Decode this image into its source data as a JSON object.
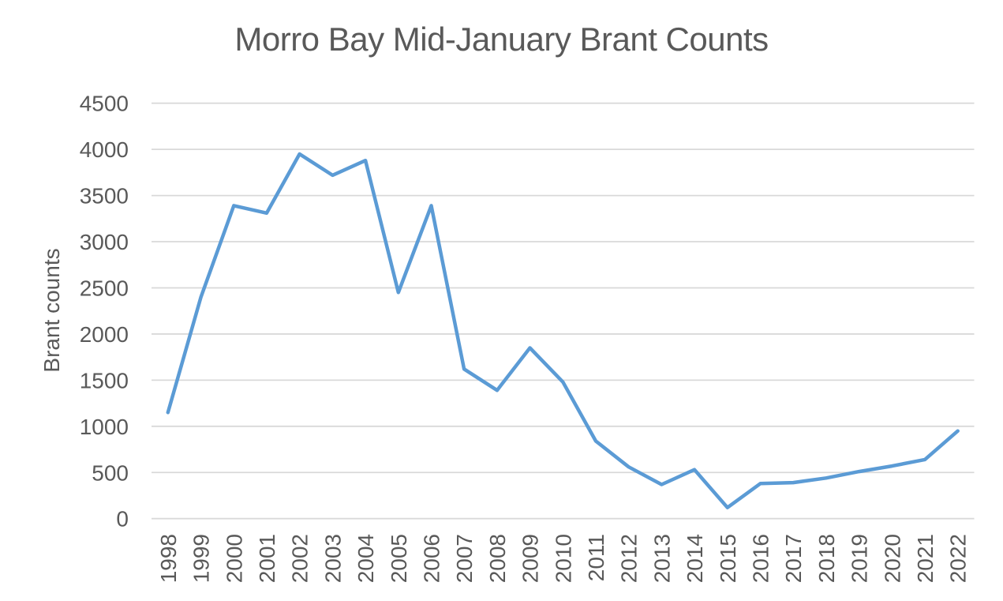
{
  "chart_data": {
    "type": "line",
    "title": "Morro Bay Mid-January Brant Counts",
    "xlabel": "",
    "ylabel": "Brant counts",
    "categories": [
      "1998",
      "1999",
      "2000",
      "2001",
      "2002",
      "2003",
      "2004",
      "2005",
      "2006",
      "2007",
      "2008",
      "2009",
      "2010",
      "2011",
      "2012",
      "2013",
      "2014",
      "2015",
      "2016",
      "2017",
      "2018",
      "2019",
      "2020",
      "2021",
      "2022"
    ],
    "values": [
      1150,
      2400,
      3390,
      3310,
      3950,
      3720,
      3880,
      2450,
      3390,
      1620,
      1390,
      1850,
      1480,
      840,
      560,
      370,
      530,
      120,
      380,
      390,
      440,
      510,
      570,
      640,
      950
    ],
    "y_ticks": [
      0,
      500,
      1000,
      1500,
      2000,
      2500,
      3000,
      3500,
      4000,
      4500
    ],
    "ylim": [
      0,
      4500
    ],
    "grid": "horizontal",
    "legend": "none",
    "line_color": "#5B9BD5",
    "gridline_color": "#D9D9D9",
    "text_color": "#595959"
  }
}
